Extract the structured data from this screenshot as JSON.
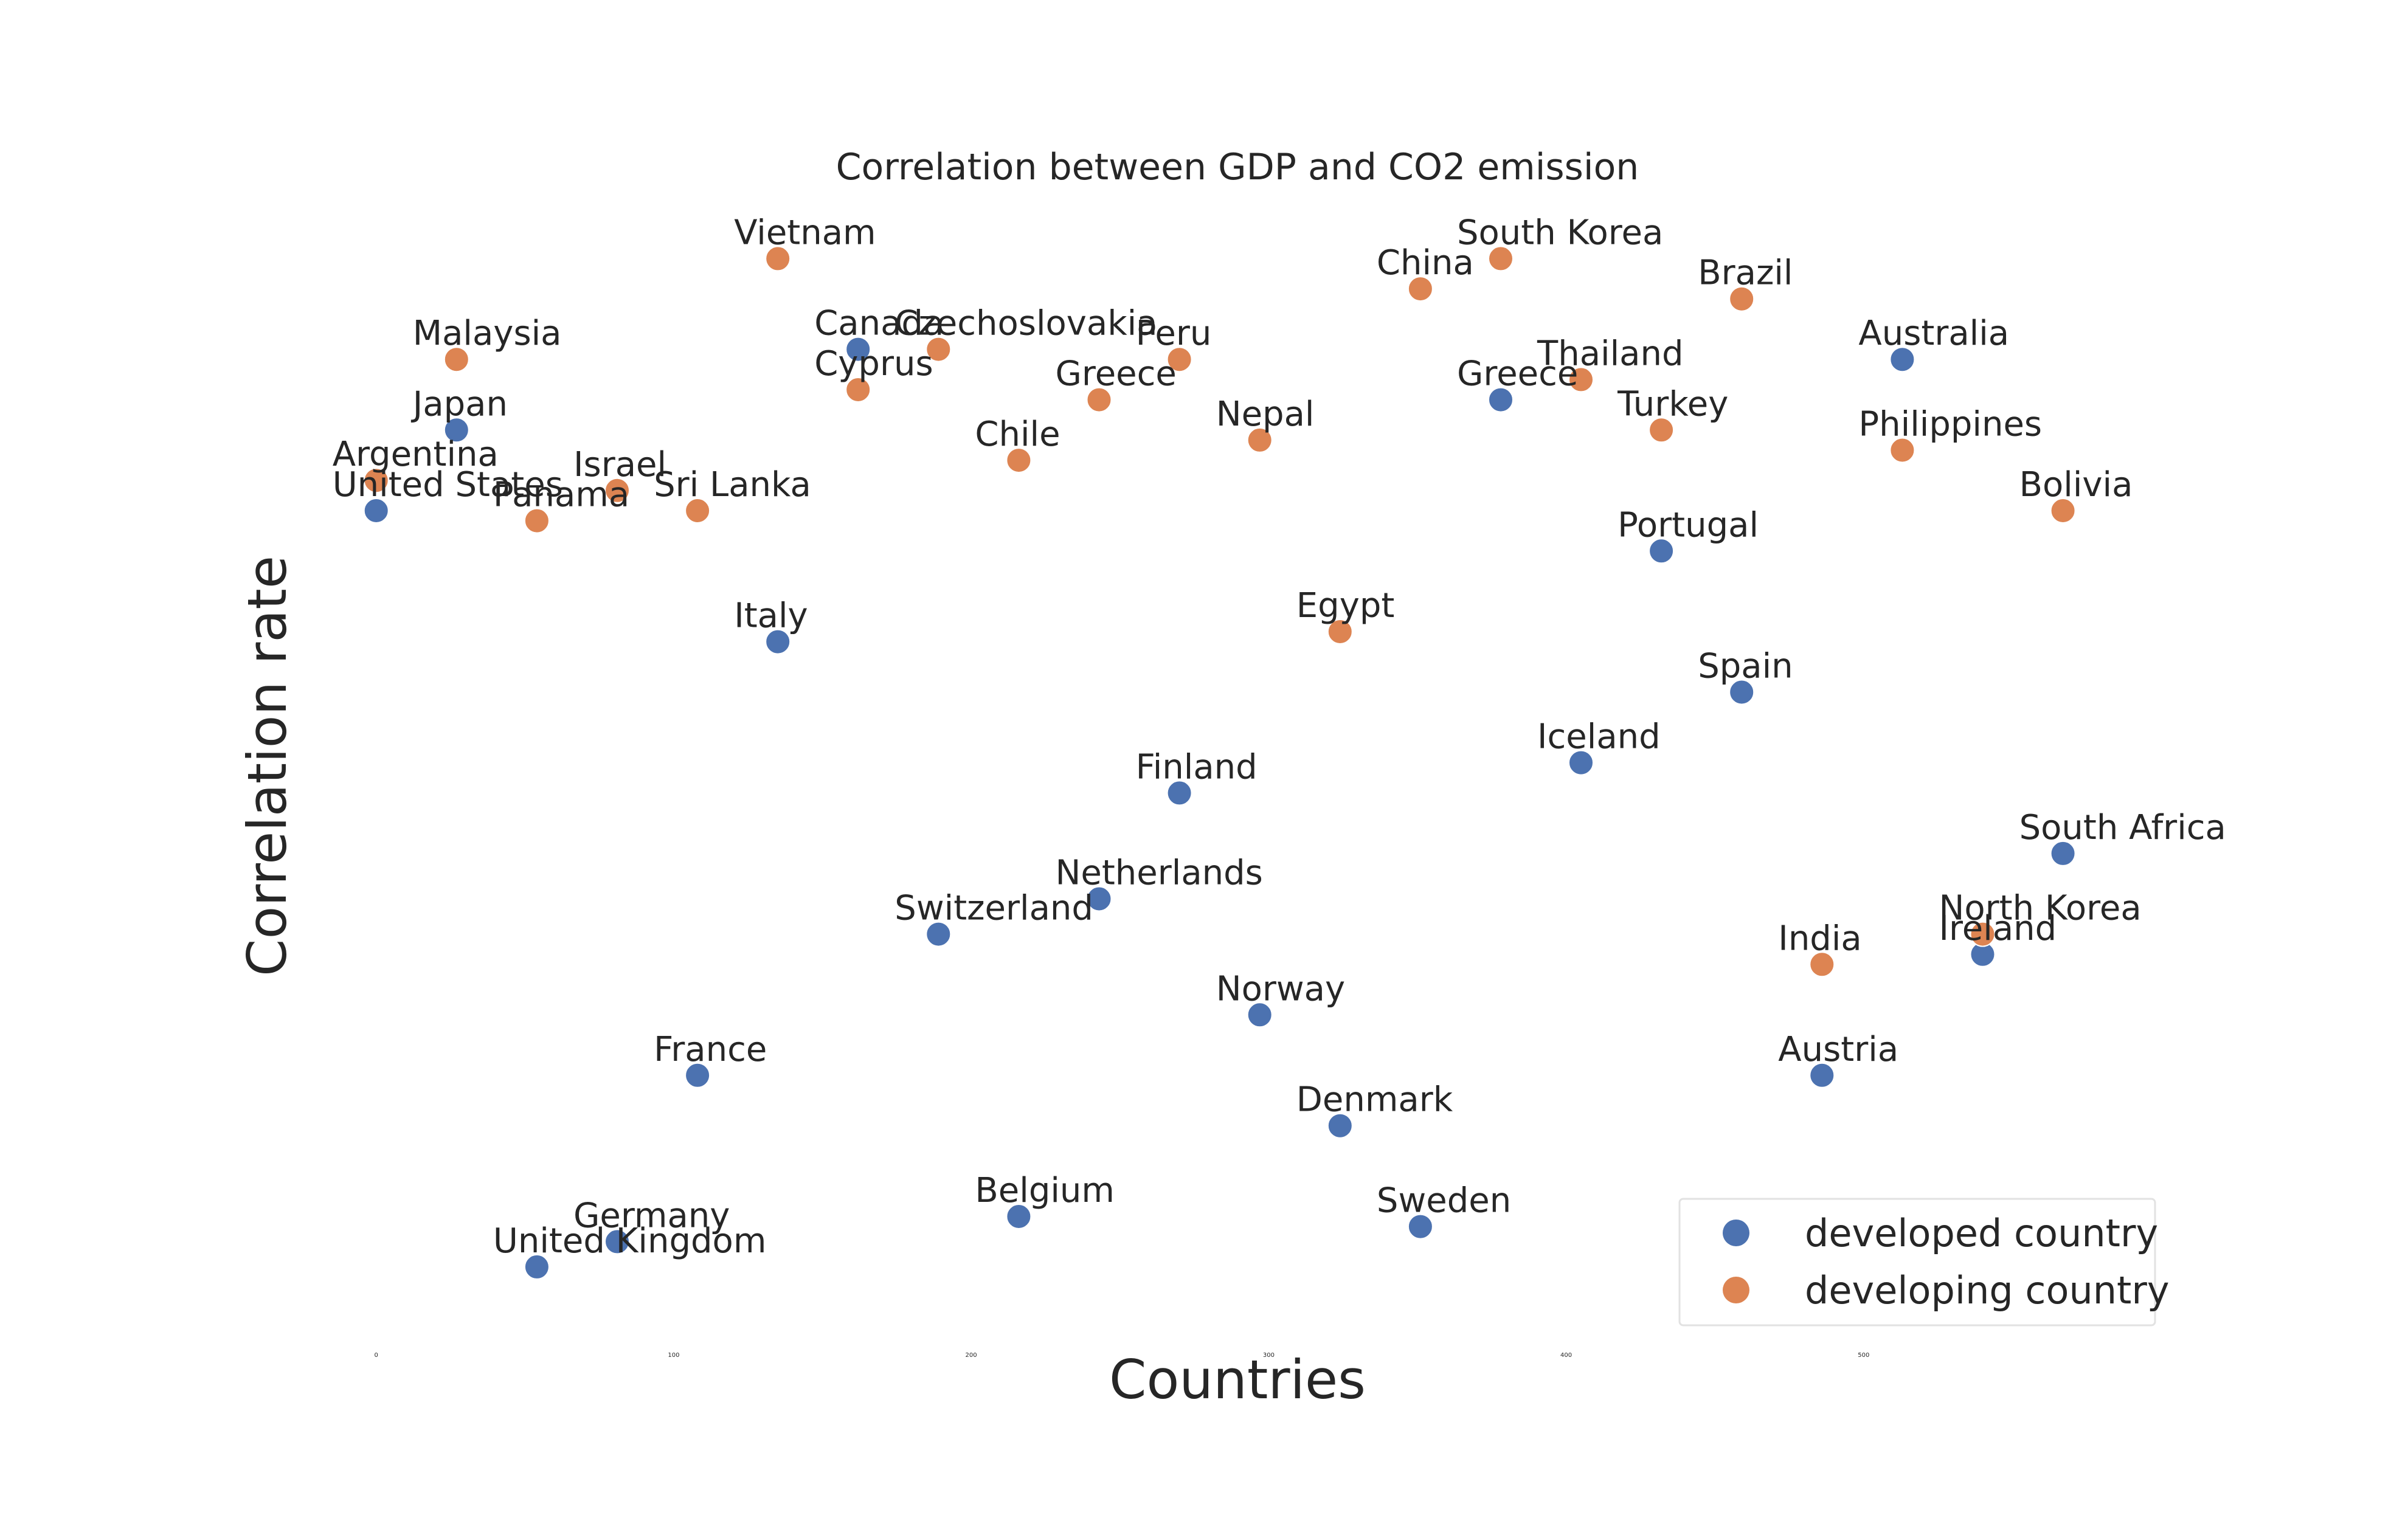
{
  "chart_data": {
    "type": "scatter",
    "title": "Correlation between GDP and CO2 emission",
    "xlabel": "Countries",
    "ylabel": "Correlation rate",
    "xlim": [
      -12,
      591
    ],
    "ylim": [
      0.12,
      1.35
    ],
    "x_ticks": [
      0,
      100,
      200,
      300,
      400,
      500
    ],
    "grid": false,
    "legend_position": "lower-right",
    "colors": {
      "developed country": "#4c72b0",
      "developing country": "#dd8452"
    },
    "series": [
      {
        "name": "developed country",
        "points": [
          {
            "label": "United States",
            "x": 0,
            "y": 0.94
          },
          {
            "label": "Japan",
            "x": 27,
            "y": 1.02
          },
          {
            "label": "United Kingdom",
            "x": 54,
            "y": 0.19
          },
          {
            "label": "Germany",
            "x": 81,
            "y": 0.215
          },
          {
            "label": "France",
            "x": 108,
            "y": 0.38
          },
          {
            "label": "Italy",
            "x": 135,
            "y": 0.81
          },
          {
            "label": "Canada",
            "x": 162,
            "y": 1.1
          },
          {
            "label": "Switzerland",
            "x": 189,
            "y": 0.52
          },
          {
            "label": "Belgium",
            "x": 216,
            "y": 0.24
          },
          {
            "label": "Netherlands",
            "x": 243,
            "y": 0.555
          },
          {
            "label": "Finland",
            "x": 270,
            "y": 0.66
          },
          {
            "label": "Norway",
            "x": 297,
            "y": 0.44
          },
          {
            "label": "Denmark",
            "x": 324,
            "y": 0.33
          },
          {
            "label": "Sweden",
            "x": 351,
            "y": 0.23
          },
          {
            "label": "Greece",
            "x": 378,
            "y": 1.05
          },
          {
            "label": "Iceland",
            "x": 405,
            "y": 0.69
          },
          {
            "label": "Portugal",
            "x": 432,
            "y": 0.9
          },
          {
            "label": "Spain",
            "x": 459,
            "y": 0.76
          },
          {
            "label": "Austria",
            "x": 486,
            "y": 0.38
          },
          {
            "label": "Australia",
            "x": 513,
            "y": 1.09
          },
          {
            "label": "Ireland",
            "x": 540,
            "y": 0.5
          },
          {
            "label": "South Africa",
            "x": 567,
            "y": 0.6
          }
        ]
      },
      {
        "name": "developing country",
        "points": [
          {
            "label": "Argentina",
            "x": 0,
            "y": 0.97
          },
          {
            "label": "Malaysia",
            "x": 27,
            "y": 1.09
          },
          {
            "label": "Panama",
            "x": 54,
            "y": 0.93
          },
          {
            "label": "Israel",
            "x": 81,
            "y": 0.96
          },
          {
            "label": "Sri Lanka",
            "x": 108,
            "y": 0.94
          },
          {
            "label": "Vietnam",
            "x": 135,
            "y": 1.19
          },
          {
            "label": "Cyprus",
            "x": 162,
            "y": 1.06
          },
          {
            "label": "Czechoslovakia",
            "x": 189,
            "y": 1.1
          },
          {
            "label": "Chile",
            "x": 216,
            "y": 0.99
          },
          {
            "label": "Greece",
            "x": 243,
            "y": 1.05
          },
          {
            "label": "Peru",
            "x": 270,
            "y": 1.09
          },
          {
            "label": "Nepal",
            "x": 297,
            "y": 1.01
          },
          {
            "label": "Egypt",
            "x": 324,
            "y": 0.82
          },
          {
            "label": "China",
            "x": 351,
            "y": 1.16
          },
          {
            "label": "South Korea",
            "x": 378,
            "y": 1.19
          },
          {
            "label": "Thailand",
            "x": 405,
            "y": 1.07
          },
          {
            "label": "Turkey",
            "x": 432,
            "y": 1.02
          },
          {
            "label": "Brazil",
            "x": 459,
            "y": 1.15
          },
          {
            "label": "India",
            "x": 486,
            "y": 0.49
          },
          {
            "label": "Philippines",
            "x": 513,
            "y": 1.0
          },
          {
            "label": "North Korea",
            "x": 540,
            "y": 0.52
          },
          {
            "label": "Bolivia",
            "x": 567,
            "y": 0.94
          }
        ]
      }
    ]
  }
}
